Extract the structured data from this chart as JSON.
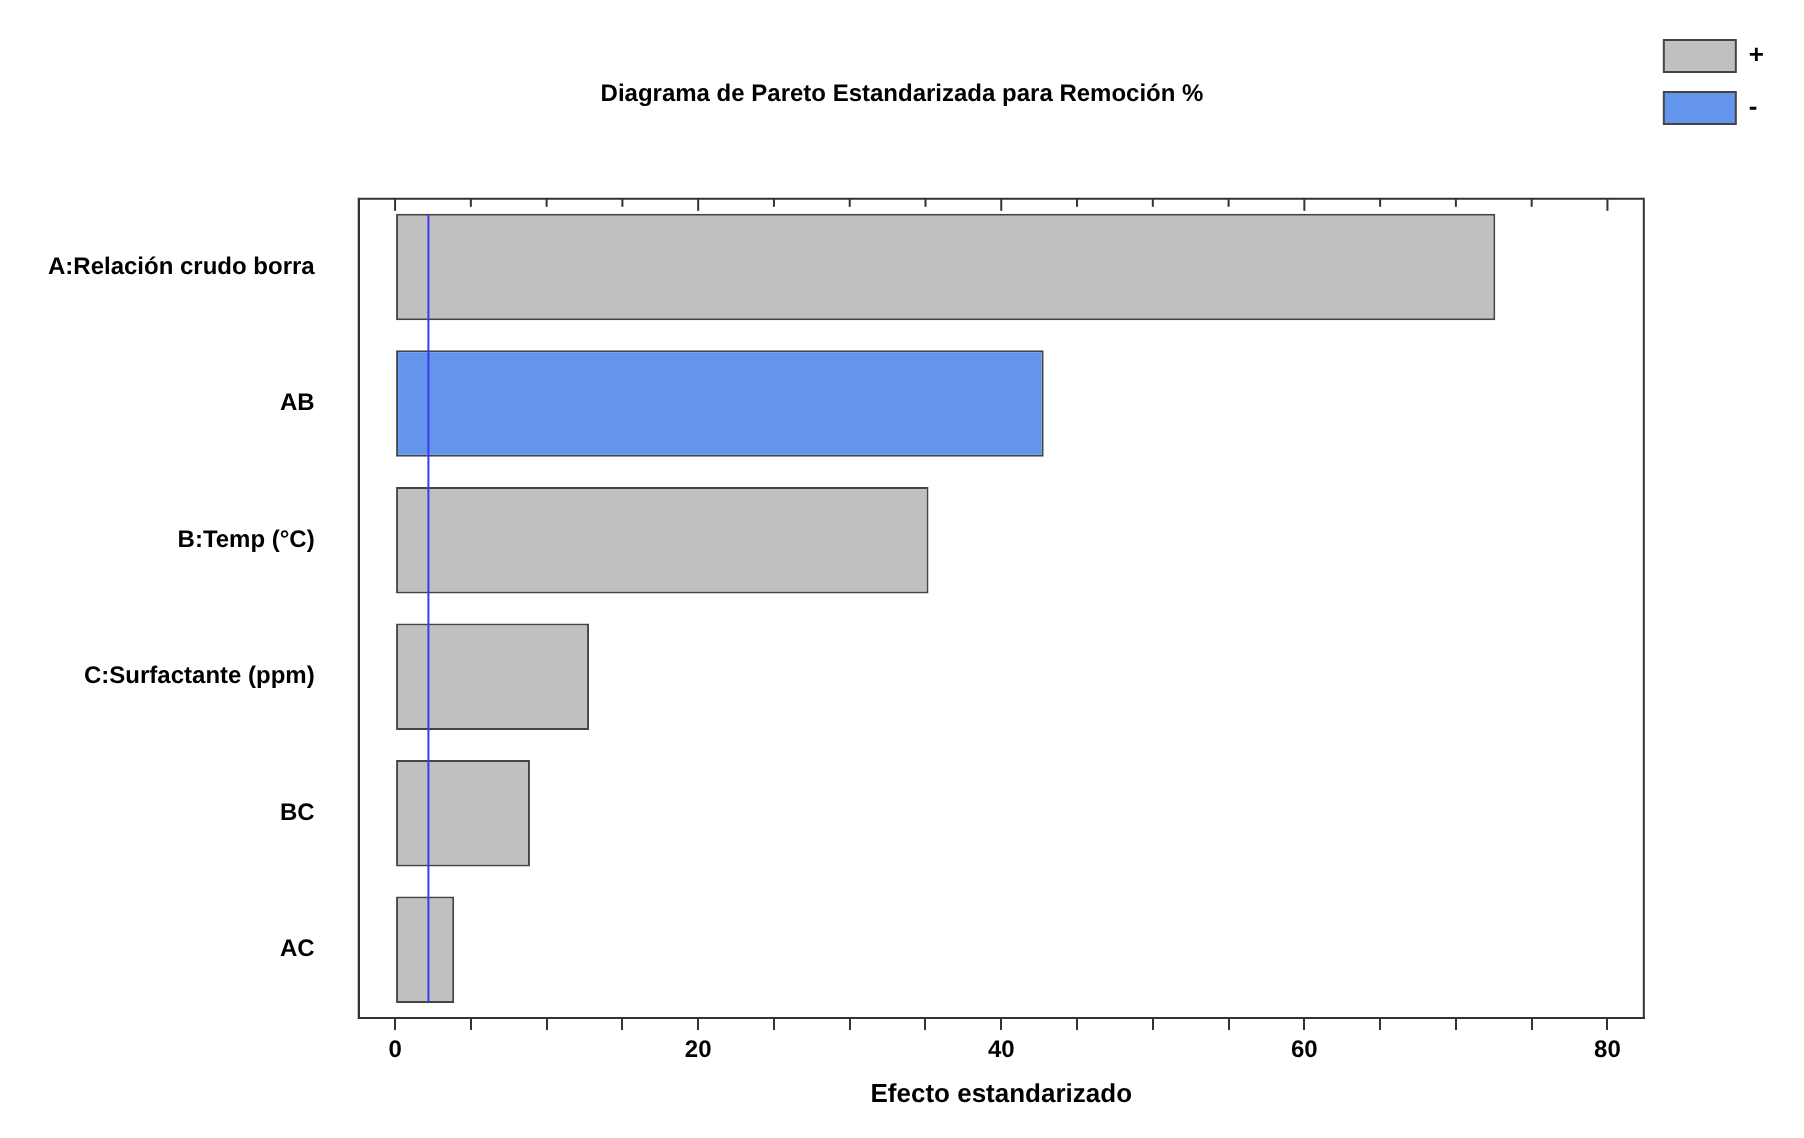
{
  "chart_data": {
    "type": "bar",
    "orientation": "horizontal",
    "stacked": true,
    "title": "Diagrama de Pareto Estandarizada para Remoción %",
    "xlabel": "Efecto estandarizado",
    "categories": [
      "A:Relación crudo borra",
      "AB",
      "B:Temp (°C)",
      "C:Surfactante (ppm)",
      "BC",
      "AC"
    ],
    "series": [
      {
        "name": "+",
        "color": "#c0c0c0",
        "values": [
          72.6,
          null,
          35.2,
          12.8,
          8.9,
          3.9
        ]
      },
      {
        "name": "-",
        "color": "#6495ed",
        "values": [
          null,
          42.8,
          null,
          null,
          null,
          null
        ]
      }
    ],
    "xlim": [
      -2.4,
      82.4
    ],
    "xticks": [
      0,
      {
        "value": 5,
        "label": null
      },
      {
        "value": 10,
        "label": null
      },
      {
        "value": 15,
        "label": null
      },
      20,
      {
        "value": 25,
        "label": null
      },
      {
        "value": 30,
        "label": null
      },
      {
        "value": 35,
        "label": null
      },
      40,
      {
        "value": 45,
        "label": null
      },
      {
        "value": 50,
        "label": null
      },
      {
        "value": 55,
        "label": null
      },
      60,
      {
        "value": 65,
        "label": null
      },
      {
        "value": 70,
        "label": null
      },
      {
        "value": 75,
        "label": null
      },
      80
    ],
    "ref_lines": [
      {
        "axis": "x",
        "value": 2.2,
        "color": "#3a3af0"
      }
    ],
    "grid": false,
    "legend": "right"
  }
}
